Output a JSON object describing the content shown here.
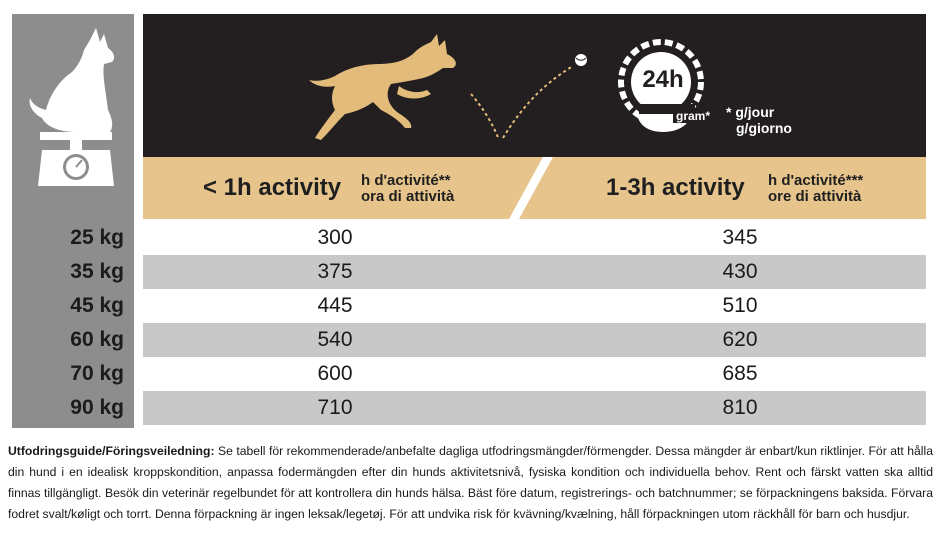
{
  "header": {
    "clock_label": "24h",
    "bowl_label": "gram*",
    "unit_lines": [
      "* g/jour",
      "g/giorno"
    ]
  },
  "columns": [
    {
      "main": "< 1h activity",
      "sub_lines": [
        "h d'activité**",
        "ora di attività"
      ]
    },
    {
      "main": "1-3h activity",
      "sub_lines": [
        "h d'activité***",
        "ore di attività"
      ]
    }
  ],
  "rows": [
    {
      "weight": "25 kg",
      "low": "300",
      "high": "345"
    },
    {
      "weight": "35 kg",
      "low": "375",
      "high": "430"
    },
    {
      "weight": "45 kg",
      "low": "445",
      "high": "510"
    },
    {
      "weight": "60 kg",
      "low": "540",
      "high": "620"
    },
    {
      "weight": "70 kg",
      "low": "600",
      "high": "685"
    },
    {
      "weight": "90 kg",
      "low": "710",
      "high": "810"
    }
  ],
  "footer": {
    "heading": "Utfodringsguide/Föringsveiledning:",
    "text": " Se tabell för rekommenderade/anbefalte dagliga utfodringsmängder/förmengder. Dessa mängder är enbart/kun riktlinjer. För att hålla din hund i en idealisk kroppskondition, anpassa fodermängden efter din hunds aktivitetsnivå, fysiska kondition och individuella behov. Rent och färskt vatten ska alltid finnas tillgängligt. Besök din veterinär regelbundet för att kontrollera din hunds hälsa. Bäst före datum, registrerings- och batchnummer; se förpackningens baksida. Förvara fodret svalt/køligt och torrt. Denna förpackning är ingen leksak/legetøj. För att undvika risk för kvävning/kvælning, håll förpackningen utom räckhåll för barn och husdjur."
  },
  "colors": {
    "dark_header": "#231f20",
    "tan_band": "#e7c48c",
    "dog_gold": "#e3bb7a",
    "grey_column": "#8d8d8d",
    "row_grey": "#c8c8c9"
  }
}
